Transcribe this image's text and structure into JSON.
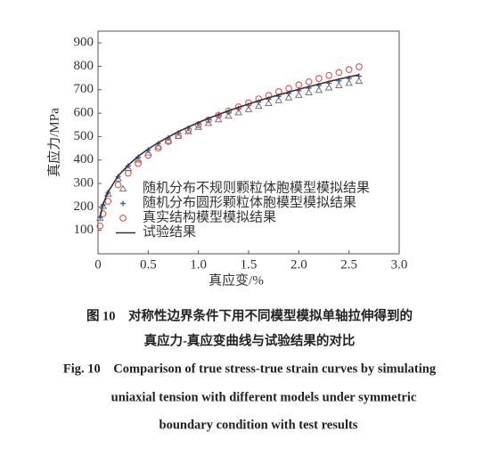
{
  "chart_data": {
    "type": "line",
    "xlabel": "真应变/%",
    "ylabel": "真应力/MPa",
    "xlim": [
      0,
      3
    ],
    "ylim": [
      0,
      950
    ],
    "xticks": [
      0,
      0.5,
      {
        "value": 1,
        "label": "1.0"
      },
      1.5,
      {
        "value": 2,
        "label": "2.0"
      },
      2.5,
      {
        "value": 3,
        "label": "3.0"
      }
    ],
    "yticks": [
      100,
      200,
      300,
      400,
      500,
      600,
      700,
      800,
      900
    ],
    "legend": "lower right",
    "x": [
      0.02,
      0.05,
      0.1,
      0.2,
      0.3,
      0.4,
      0.5,
      0.6,
      0.7,
      0.8,
      0.9,
      1.0,
      1.1,
      1.2,
      1.3,
      1.4,
      1.5,
      1.6,
      1.7,
      1.8,
      1.9,
      2.0,
      2.1,
      2.2,
      2.3,
      2.4,
      2.5,
      2.6
    ],
    "series": [
      {
        "name": "随机分布不规则颗粒体胞模型模拟结果",
        "color": "#777777",
        "marker": "triangle",
        "values": [
          151,
          203,
          255,
          320,
          365,
          401,
          431,
          457,
          481,
          502,
          522,
          540,
          557,
          573,
          588,
          603,
          616,
          630,
          642,
          654,
          666,
          677,
          688,
          698,
          708,
          718,
          728,
          737
        ]
      },
      {
        "name": "随机分布圆形颗粒体胞模型模拟结果",
        "color": "#4a5fa8",
        "marker": "plus",
        "values": [
          155,
          209,
          262,
          329,
          375,
          412,
          443,
          470,
          494,
          516,
          536,
          555,
          573,
          589,
          604,
          619,
          633,
          647,
          660,
          672,
          684,
          696,
          707,
          718,
          728,
          738,
          748,
          758
        ]
      },
      {
        "name": "真实结构模型模拟结果",
        "color": "#d9534f",
        "marker": "circle",
        "values": [
          119,
          171,
          224,
          294,
          344,
          385,
          420,
          451,
          479,
          504,
          528,
          550,
          571,
          591,
          609,
          627,
          644,
          661,
          676,
          692,
          706,
          721,
          734,
          748,
          761,
          774,
          786,
          798
        ]
      },
      {
        "name": "试验结果",
        "color": "#333333",
        "marker": "line",
        "values": [
          156,
          211,
          264,
          332,
          378,
          416,
          447,
          474,
          498,
          521,
          541,
          560,
          578,
          594,
          610,
          625,
          639,
          653,
          666,
          678,
          690,
          702,
          713,
          724,
          735,
          745,
          755,
          764
        ]
      }
    ]
  },
  "caption": {
    "cn": [
      "图 10　对称性边界条件下用不同模型模拟单轴拉伸得到的",
      "真应力-真应变曲线与试验结果的对比"
    ],
    "en": [
      "Fig. 10　Comparison of true stress-true strain curves by simulating",
      "uniaxial tension with different models under symmetric",
      "boundary condition with test results"
    ]
  }
}
